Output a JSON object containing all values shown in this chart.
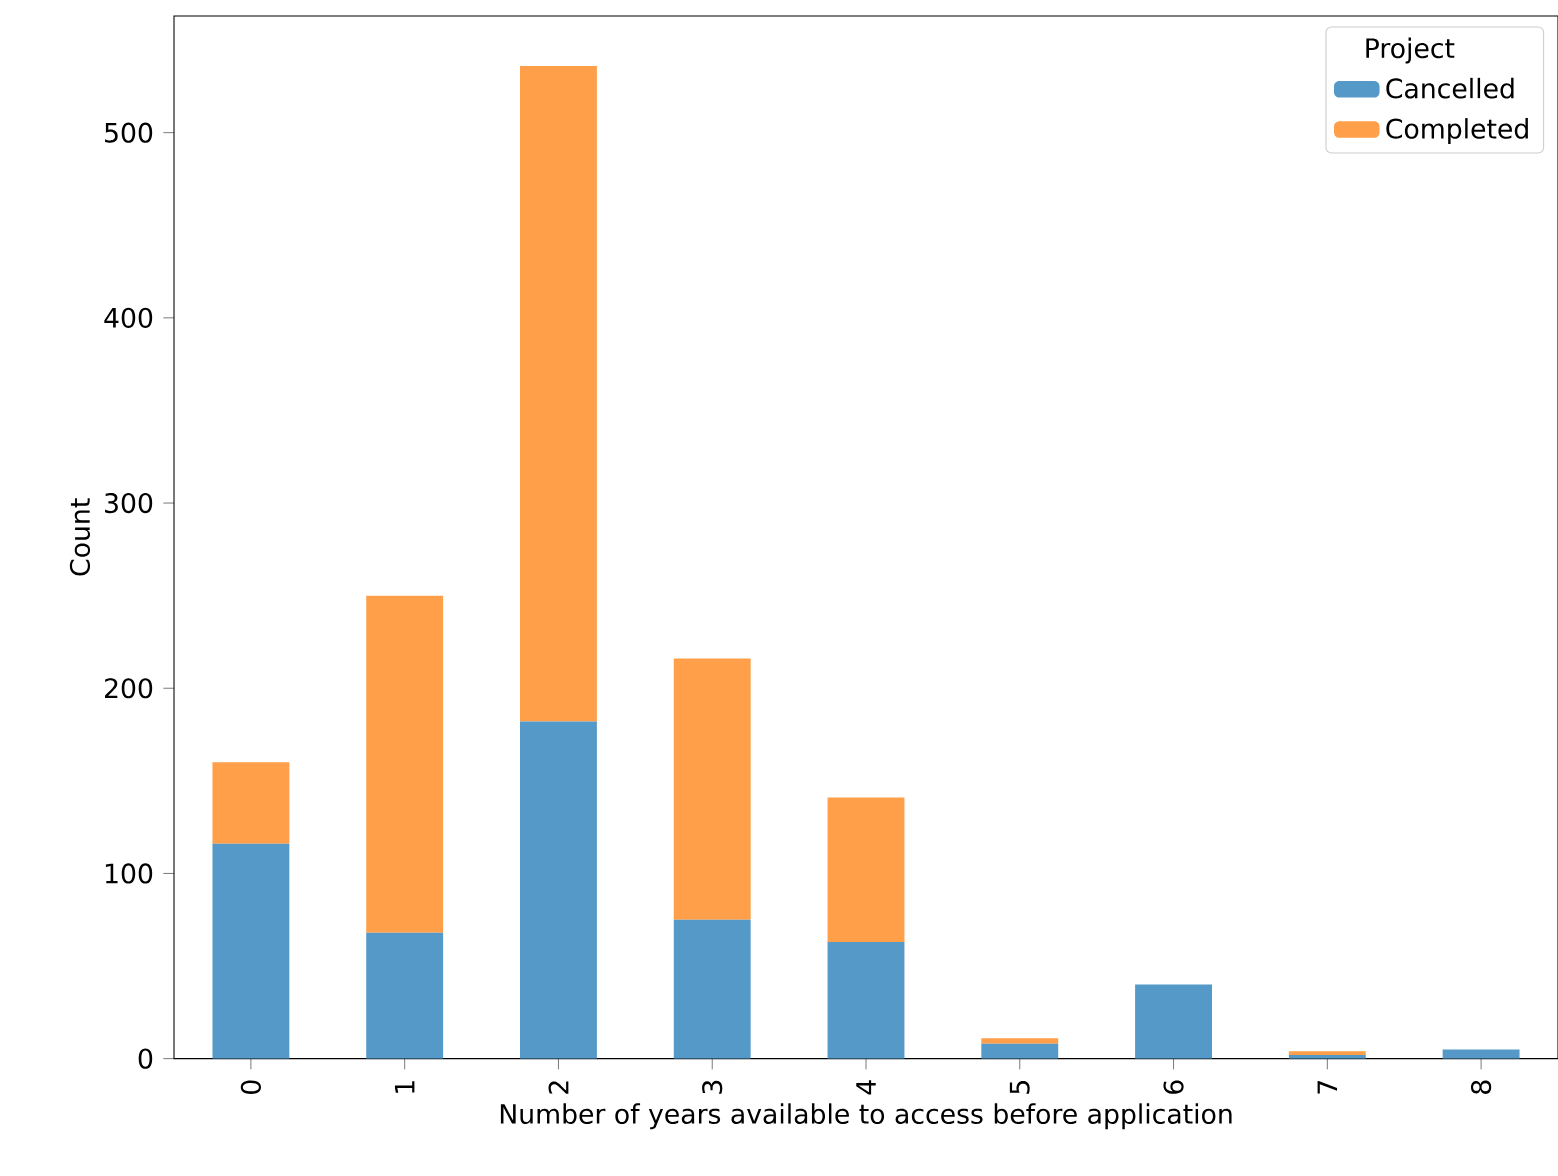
{
  "chart_data": {
    "type": "bar",
    "stacked": true,
    "xlabel": "Number of years available to access before application",
    "ylabel": "Count",
    "legend_title": "Project",
    "legend": "top right",
    "categories": [
      "0",
      "1",
      "2",
      "3",
      "4",
      "5",
      "6",
      "7",
      "8"
    ],
    "series": [
      {
        "name": "Cancelled",
        "color": "#5599c8",
        "values": [
          116,
          68,
          182,
          75,
          63,
          8,
          40,
          2,
          5
        ]
      },
      {
        "name": "Completed",
        "color": "#ff9f4a",
        "values": [
          44,
          182,
          354,
          141,
          78,
          3,
          0,
          2,
          0
        ]
      }
    ],
    "ylim": [
      0,
      563
    ],
    "yticks": [
      0,
      100,
      200,
      300,
      400,
      500
    ]
  }
}
